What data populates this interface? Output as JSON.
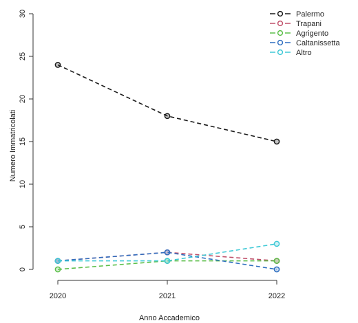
{
  "chart_data": {
    "type": "line",
    "title": "",
    "xlabel": "Anno Accademico",
    "ylabel": "Numero Immatricolati",
    "x": [
      2020,
      2021,
      2022
    ],
    "xticks": [
      "2020",
      "2021",
      "2022"
    ],
    "ylim": [
      0,
      30
    ],
    "yticks": [
      "0",
      "5",
      "10",
      "15",
      "20",
      "25",
      "30"
    ],
    "grid": false,
    "legend_position": "top-right",
    "line_style": "dashed",
    "marker": "open-circle",
    "series": [
      {
        "name": "Palermo",
        "color": "#1a1a1a",
        "values": [
          24,
          18,
          15
        ]
      },
      {
        "name": "Trapani",
        "color": "#c0506a",
        "values": [
          1,
          2,
          1
        ]
      },
      {
        "name": "Agrigento",
        "color": "#5cbf4a",
        "values": [
          0,
          1,
          1
        ]
      },
      {
        "name": "Caltanissetta",
        "color": "#2f6fc0",
        "values": [
          1,
          2,
          0
        ]
      },
      {
        "name": "Altro",
        "color": "#3ec9d6",
        "values": [
          1,
          1,
          3
        ]
      }
    ]
  }
}
